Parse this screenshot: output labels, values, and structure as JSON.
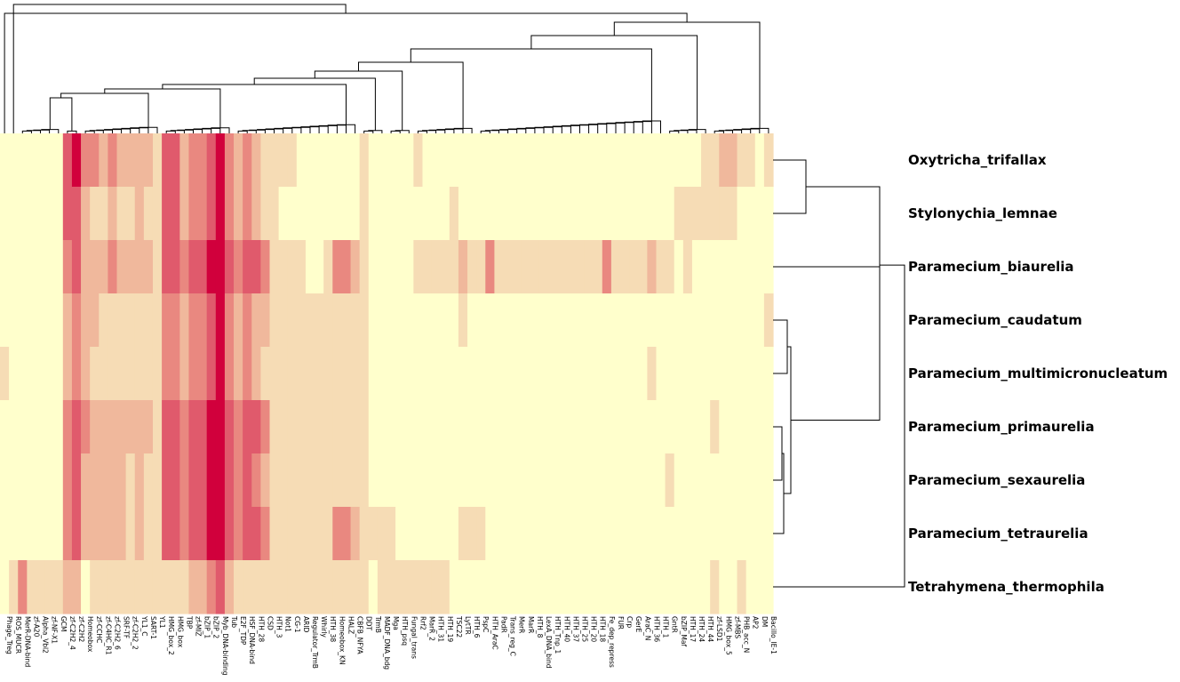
{
  "chart_data": {
    "type": "heatmap",
    "title": "",
    "rows": [
      "Oxytricha_trifallax",
      "Stylonychia_lemnae",
      "Paramecium_biaurelia",
      "Paramecium_caudatum",
      "Paramecium_multimicronucleatum",
      "Paramecium_primaurelia",
      "Paramecium_sexaurelia",
      "Paramecium_tetraurelia",
      "Tetrahymena_thermophila"
    ],
    "columns": [
      "Phage_Treg",
      "ROS_MUCR",
      "MerR-DNA-bind",
      "zf-A20",
      "Alpha_Vbl2",
      "zf-NF-X1",
      "GCM",
      "zf-C2H2_4",
      "zf-C2H2",
      "Homeobox",
      "zf-CCHC",
      "zf-C4HC_R1",
      "zf-C2H2_6",
      "SRF-TF",
      "zf-C2H2_2",
      "YL1_C",
      "SART-1",
      "YL1",
      "HMG_box_2",
      "HMG_box",
      "TBP",
      "zf-MIZ",
      "bZIP_1",
      "bZIP_2",
      "Myb_DNA-binding",
      "Tub",
      "E2F_TDP",
      "HSF_DNA-bind",
      "HTH_28",
      "CSD",
      "HTH_3",
      "Not1",
      "CG-1",
      "ARID",
      "Regulator_TrmB",
      "Whirly",
      "HTH_38",
      "Homeobox_KN",
      "HALZ",
      "CBFB_NFYA",
      "DDT",
      "TrmB",
      "MADF_DNA_bdg",
      "Mga",
      "HTH_psq",
      "Fungal_trans",
      "Rrf2",
      "MarR_2",
      "HTH_31",
      "HTH_19",
      "TSC22",
      "LytTR",
      "HTH_6",
      "PspC",
      "HTH_AraC",
      "PadR",
      "Trans_reg_C",
      "MerR",
      "MarR",
      "HTH_8",
      "LexA_DNA_bind",
      "HTH_Tnp_1",
      "HTH_40",
      "HTH_37",
      "HTH_25",
      "HTH_20",
      "HTH_18",
      "Fe_dep_repress",
      "FUR",
      "Crp",
      "GerE",
      "AraC_N",
      "HTH_36",
      "HTH_1",
      "GntR",
      "bZIP_Maf",
      "HTH_17",
      "HTH_24",
      "HTH_44",
      "zf-LSD1",
      "HMG_box_5",
      "zf-MBS",
      "PHB_acc_N",
      "AP2",
      "DM",
      "Bacillo_IE-1"
    ],
    "colormap": [
      "#ffffcc",
      "#f6dcb5",
      "#f0b89c",
      "#e98880",
      "#e05a6c",
      "#d1003c"
    ],
    "scale_levels": 5,
    "values": [
      [
        0,
        0,
        0,
        0,
        0,
        0,
        0,
        4,
        5,
        3,
        3,
        2,
        3,
        2,
        2,
        2,
        2,
        1,
        4,
        4,
        2,
        3,
        3,
        4,
        5,
        3,
        2,
        3,
        2,
        1,
        1,
        1,
        1,
        0,
        0,
        0,
        0,
        0,
        0,
        0,
        1,
        0,
        0,
        0,
        0,
        0,
        1,
        0,
        0,
        0,
        0,
        0,
        0,
        0,
        0,
        0,
        0,
        0,
        0,
        0,
        0,
        0,
        0,
        0,
        0,
        0,
        0,
        0,
        0,
        0,
        0,
        0,
        0,
        0,
        0,
        0,
        0,
        0,
        1,
        1,
        2,
        2,
        1,
        1,
        0,
        1
      ],
      [
        0,
        0,
        0,
        0,
        0,
        0,
        0,
        4,
        4,
        2,
        1,
        1,
        2,
        1,
        1,
        2,
        1,
        1,
        4,
        4,
        2,
        3,
        3,
        4,
        5,
        3,
        2,
        3,
        2,
        1,
        1,
        0,
        0,
        0,
        0,
        0,
        0,
        0,
        0,
        0,
        1,
        0,
        0,
        0,
        0,
        0,
        0,
        0,
        0,
        0,
        1,
        0,
        0,
        0,
        0,
        0,
        0,
        0,
        0,
        0,
        0,
        0,
        0,
        0,
        0,
        0,
        0,
        0,
        0,
        0,
        0,
        0,
        0,
        0,
        0,
        1,
        1,
        1,
        1,
        1,
        1,
        1,
        0,
        0,
        0,
        0
      ],
      [
        0,
        0,
        0,
        0,
        0,
        0,
        0,
        3,
        4,
        2,
        2,
        2,
        3,
        2,
        2,
        2,
        2,
        1,
        4,
        4,
        3,
        4,
        4,
        5,
        5,
        4,
        3,
        4,
        4,
        3,
        1,
        1,
        1,
        1,
        0,
        0,
        1,
        3,
        3,
        2,
        1,
        0,
        0,
        0,
        0,
        0,
        1,
        1,
        1,
        1,
        1,
        2,
        1,
        1,
        3,
        1,
        1,
        1,
        1,
        1,
        1,
        1,
        1,
        1,
        1,
        1,
        1,
        3,
        1,
        1,
        1,
        1,
        2,
        1,
        1,
        0,
        1,
        0,
        0,
        0,
        0,
        0,
        0,
        0,
        0,
        0
      ],
      [
        0,
        0,
        0,
        0,
        0,
        0,
        0,
        2,
        3,
        2,
        2,
        1,
        1,
        1,
        1,
        1,
        1,
        1,
        3,
        3,
        2,
        3,
        3,
        4,
        5,
        3,
        2,
        3,
        2,
        2,
        1,
        1,
        1,
        1,
        1,
        1,
        1,
        1,
        1,
        1,
        1,
        0,
        0,
        0,
        0,
        0,
        0,
        0,
        0,
        0,
        0,
        1,
        0,
        0,
        0,
        0,
        0,
        0,
        0,
        0,
        0,
        0,
        0,
        0,
        0,
        0,
        0,
        0,
        0,
        0,
        0,
        0,
        0,
        0,
        0,
        0,
        0,
        0,
        0,
        0,
        0,
        0,
        0,
        0,
        0,
        1
      ],
      [
        1,
        0,
        0,
        0,
        0,
        0,
        0,
        2,
        3,
        2,
        1,
        1,
        1,
        1,
        1,
        1,
        1,
        1,
        3,
        3,
        2,
        3,
        3,
        4,
        5,
        3,
        2,
        3,
        2,
        1,
        1,
        1,
        1,
        1,
        1,
        1,
        1,
        1,
        1,
        1,
        1,
        0,
        0,
        0,
        0,
        0,
        0,
        0,
        0,
        0,
        0,
        0,
        0,
        0,
        0,
        0,
        0,
        0,
        0,
        0,
        0,
        0,
        0,
        0,
        0,
        0,
        0,
        0,
        0,
        0,
        0,
        0,
        1,
        0,
        0,
        0,
        0,
        0,
        0,
        0,
        0,
        0,
        0,
        0,
        0,
        0
      ],
      [
        0,
        0,
        0,
        0,
        0,
        0,
        0,
        3,
        4,
        3,
        2,
        2,
        2,
        2,
        2,
        2,
        2,
        1,
        4,
        4,
        3,
        4,
        4,
        5,
        5,
        4,
        3,
        4,
        4,
        3,
        1,
        1,
        1,
        1,
        1,
        1,
        1,
        1,
        1,
        1,
        1,
        0,
        0,
        0,
        0,
        0,
        0,
        0,
        0,
        0,
        0,
        0,
        0,
        0,
        0,
        0,
        0,
        0,
        0,
        0,
        0,
        0,
        0,
        0,
        0,
        0,
        0,
        0,
        0,
        0,
        0,
        0,
        0,
        0,
        0,
        0,
        0,
        0,
        0,
        1,
        0,
        0,
        0,
        0,
        0,
        0
      ],
      [
        0,
        0,
        0,
        0,
        0,
        0,
        0,
        3,
        4,
        2,
        2,
        2,
        2,
        2,
        1,
        2,
        1,
        1,
        4,
        4,
        3,
        4,
        4,
        5,
        5,
        4,
        3,
        4,
        3,
        2,
        1,
        1,
        1,
        1,
        1,
        1,
        1,
        1,
        1,
        1,
        1,
        0,
        0,
        0,
        0,
        0,
        0,
        0,
        0,
        0,
        0,
        0,
        0,
        0,
        0,
        0,
        0,
        0,
        0,
        0,
        0,
        0,
        0,
        0,
        0,
        0,
        0,
        0,
        0,
        0,
        0,
        0,
        0,
        0,
        1,
        0,
        0,
        0,
        0,
        0,
        0,
        0,
        0,
        0,
        0,
        0
      ],
      [
        0,
        0,
        0,
        0,
        0,
        0,
        0,
        3,
        4,
        2,
        2,
        2,
        2,
        2,
        1,
        2,
        1,
        1,
        4,
        4,
        3,
        4,
        4,
        5,
        5,
        4,
        3,
        4,
        4,
        3,
        1,
        1,
        1,
        1,
        1,
        1,
        1,
        3,
        3,
        2,
        1,
        1,
        1,
        1,
        0,
        0,
        0,
        0,
        0,
        0,
        0,
        1,
        1,
        1,
        0,
        0,
        0,
        0,
        0,
        0,
        0,
        0,
        0,
        0,
        0,
        0,
        0,
        0,
        0,
        0,
        0,
        0,
        0,
        0,
        0,
        0,
        0,
        0,
        0,
        0,
        0,
        0,
        0,
        0,
        0,
        0
      ],
      [
        0,
        1,
        3,
        1,
        1,
        1,
        1,
        2,
        2,
        0,
        1,
        1,
        1,
        1,
        1,
        1,
        1,
        1,
        1,
        1,
        1,
        2,
        2,
        3,
        4,
        2,
        1,
        1,
        1,
        1,
        1,
        1,
        1,
        1,
        1,
        1,
        1,
        1,
        1,
        1,
        1,
        0,
        1,
        1,
        1,
        1,
        1,
        1,
        1,
        1,
        0,
        0,
        0,
        0,
        0,
        0,
        0,
        0,
        0,
        0,
        0,
        0,
        0,
        0,
        0,
        0,
        0,
        0,
        0,
        0,
        0,
        0,
        0,
        0,
        0,
        0,
        0,
        0,
        0,
        1,
        0,
        0,
        1,
        0,
        0,
        0
      ]
    ]
  }
}
